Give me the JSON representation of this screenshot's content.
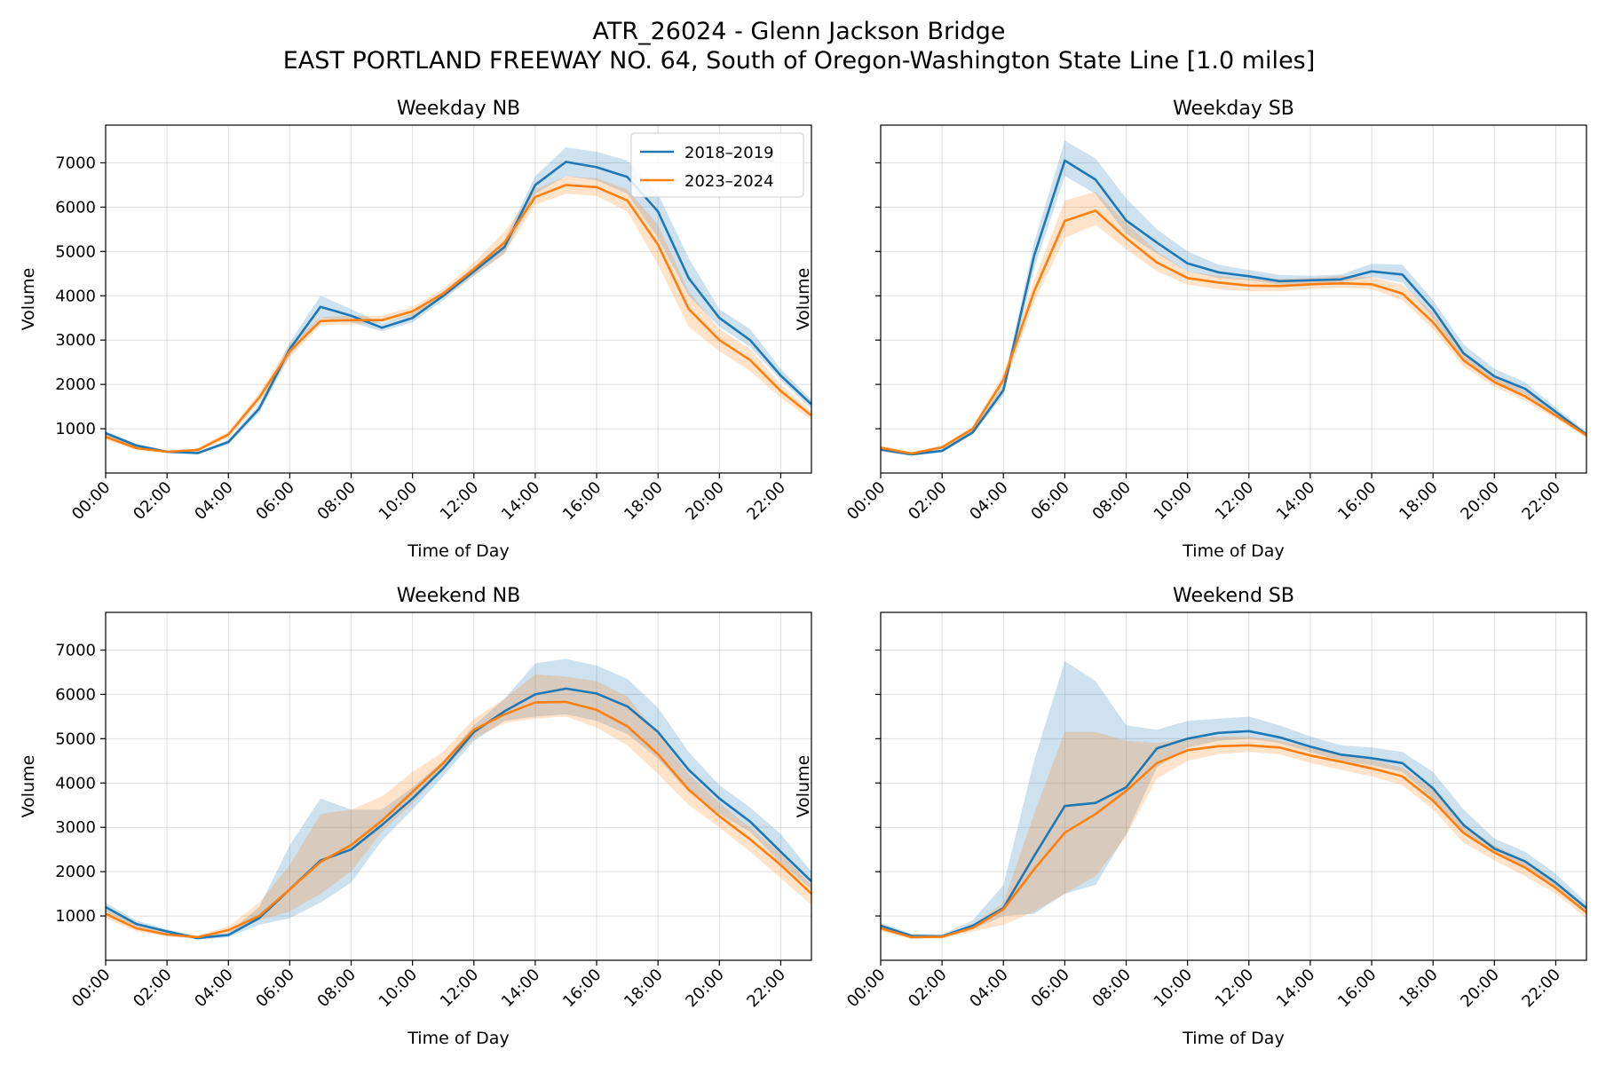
{
  "figure": {
    "title_line1": "ATR_26024 - Glenn Jackson Bridge",
    "title_line2": "EAST PORTLAND FREEWAY NO. 64, South of Oregon-Washington State Line [1.0 miles]"
  },
  "colors": {
    "series_2018_2019": "#1f77b4",
    "series_2023_2024": "#ff7f0e",
    "grid": "#b0b0b0"
  },
  "chart_data": [
    {
      "type": "line",
      "title": "Weekday NB",
      "xlabel": "Time of Day",
      "ylabel": "Volume",
      "xlim": [
        0,
        23
      ],
      "ylim": [
        0,
        7850
      ],
      "xticks": [
        "00:00",
        "02:00",
        "04:00",
        "06:00",
        "08:00",
        "10:00",
        "12:00",
        "14:00",
        "16:00",
        "18:00",
        "20:00",
        "22:00"
      ],
      "yticks": [
        1000,
        2000,
        3000,
        4000,
        5000,
        6000,
        7000
      ],
      "grid": true,
      "legend": "top-right",
      "x": [
        0,
        1,
        2,
        3,
        4,
        5,
        6,
        7,
        8,
        9,
        10,
        11,
        12,
        13,
        14,
        15,
        16,
        17,
        18,
        19,
        20,
        21,
        22,
        23
      ],
      "series": [
        {
          "name": "2018–2019",
          "color": "#1f77b4",
          "values": [
            900,
            620,
            480,
            450,
            700,
            1450,
            2800,
            3750,
            3550,
            3280,
            3500,
            4000,
            4550,
            5100,
            6500,
            7020,
            6900,
            6680,
            5900,
            4400,
            3500,
            3000,
            2200,
            1550
          ],
          "lower": [
            850,
            580,
            450,
            420,
            650,
            1350,
            2650,
            3500,
            3400,
            3200,
            3400,
            3900,
            4450,
            4950,
            6300,
            6700,
            6600,
            6300,
            5300,
            4000,
            3300,
            2850,
            2100,
            1450
          ],
          "upper": [
            950,
            660,
            510,
            480,
            750,
            1550,
            2950,
            4000,
            3700,
            3380,
            3600,
            4100,
            4650,
            5250,
            6700,
            7350,
            7250,
            7050,
            6300,
            4850,
            3700,
            3250,
            2350,
            1650
          ]
        },
        {
          "name": "2023–2024",
          "color": "#ff7f0e",
          "values": [
            820,
            560,
            480,
            520,
            870,
            1700,
            2750,
            3430,
            3450,
            3450,
            3650,
            4050,
            4600,
            5200,
            6230,
            6500,
            6450,
            6150,
            5150,
            3700,
            3000,
            2550,
            1850,
            1300
          ],
          "lower": [
            750,
            520,
            450,
            480,
            800,
            1600,
            2600,
            3350,
            3350,
            3400,
            3550,
            3950,
            4450,
            4950,
            6050,
            6300,
            6250,
            5900,
            4700,
            3300,
            2750,
            2300,
            1700,
            1200
          ],
          "upper": [
            900,
            600,
            510,
            560,
            940,
            1800,
            2900,
            3520,
            3550,
            3550,
            3750,
            4150,
            4750,
            5450,
            6400,
            6700,
            6650,
            6400,
            5600,
            4100,
            3250,
            2800,
            2000,
            1400
          ]
        }
      ]
    },
    {
      "type": "line",
      "title": "Weekday SB",
      "xlabel": "Time of Day",
      "ylabel": "Volume",
      "xlim": [
        0,
        23
      ],
      "ylim": [
        0,
        7850
      ],
      "xticks": [
        "00:00",
        "02:00",
        "04:00",
        "06:00",
        "08:00",
        "10:00",
        "12:00",
        "14:00",
        "16:00",
        "18:00",
        "20:00",
        "22:00"
      ],
      "yticks": [
        1000,
        2000,
        3000,
        4000,
        5000,
        6000,
        7000
      ],
      "grid": true,
      "x": [
        0,
        1,
        2,
        3,
        4,
        5,
        6,
        7,
        8,
        9,
        10,
        11,
        12,
        13,
        14,
        15,
        16,
        17,
        18,
        19,
        20,
        21,
        22,
        23
      ],
      "series": [
        {
          "name": "2018–2019",
          "color": "#1f77b4",
          "values": [
            530,
            420,
            500,
            920,
            1870,
            4900,
            7050,
            6620,
            5700,
            5200,
            4730,
            4530,
            4440,
            4330,
            4350,
            4370,
            4550,
            4480,
            3700,
            2700,
            2180,
            1900,
            1380,
            870
          ],
          "lower": [
            480,
            390,
            460,
            870,
            1750,
            4600,
            6700,
            6300,
            5400,
            4950,
            4550,
            4400,
            4350,
            4250,
            4280,
            4300,
            4420,
            4300,
            3500,
            2550,
            2050,
            1780,
            1300,
            820
          ],
          "upper": [
            580,
            450,
            540,
            980,
            1990,
            5200,
            7500,
            7100,
            6200,
            5500,
            5000,
            4700,
            4580,
            4470,
            4450,
            4480,
            4720,
            4700,
            3900,
            2900,
            2350,
            2050,
            1480,
            930
          ]
        },
        {
          "name": "2023–2024",
          "color": "#ff7f0e",
          "values": [
            570,
            440,
            580,
            1000,
            2100,
            4100,
            5690,
            5920,
            5300,
            4750,
            4400,
            4300,
            4230,
            4220,
            4260,
            4280,
            4260,
            4050,
            3400,
            2540,
            2050,
            1730,
            1300,
            850
          ],
          "lower": [
            520,
            410,
            540,
            950,
            1900,
            3850,
            5300,
            5600,
            5050,
            4550,
            4250,
            4150,
            4100,
            4100,
            4150,
            4180,
            4150,
            3900,
            3250,
            2400,
            1950,
            1630,
            1230,
            800
          ],
          "upper": [
            620,
            470,
            620,
            1050,
            2250,
            4350,
            6150,
            6350,
            5650,
            5000,
            4550,
            4450,
            4380,
            4380,
            4400,
            4450,
            4420,
            4250,
            3600,
            2700,
            2200,
            1850,
            1400,
            900
          ]
        }
      ]
    },
    {
      "type": "line",
      "title": "Weekend NB",
      "xlabel": "Time of Day",
      "ylabel": "Volume",
      "xlim": [
        0,
        23
      ],
      "ylim": [
        0,
        7850
      ],
      "xticks": [
        "00:00",
        "02:00",
        "04:00",
        "06:00",
        "08:00",
        "10:00",
        "12:00",
        "14:00",
        "16:00",
        "18:00",
        "20:00",
        "22:00"
      ],
      "yticks": [
        1000,
        2000,
        3000,
        4000,
        5000,
        6000,
        7000
      ],
      "grid": true,
      "x": [
        0,
        1,
        2,
        3,
        4,
        5,
        6,
        7,
        8,
        9,
        10,
        11,
        12,
        13,
        14,
        15,
        16,
        17,
        18,
        19,
        20,
        21,
        22,
        23
      ],
      "series": [
        {
          "name": "2018–2019",
          "color": "#1f77b4",
          "values": [
            1200,
            820,
            650,
            500,
            570,
            950,
            1600,
            2250,
            2500,
            3050,
            3650,
            4330,
            5150,
            5620,
            6000,
            6130,
            6020,
            5730,
            5150,
            4300,
            3650,
            3130,
            2450,
            1780
          ],
          "lower": [
            1100,
            750,
            600,
            460,
            520,
            800,
            950,
            1300,
            1750,
            2700,
            3400,
            4150,
            4950,
            5400,
            5500,
            5550,
            5400,
            5100,
            4550,
            3800,
            3300,
            2900,
            2200,
            1600
          ],
          "upper": [
            1300,
            900,
            700,
            540,
            620,
            1200,
            2600,
            3650,
            3400,
            3400,
            3900,
            4500,
            5300,
            5900,
            6700,
            6800,
            6650,
            6350,
            5700,
            4700,
            3950,
            3450,
            2850,
            2000
          ]
        },
        {
          "name": "2023–2024",
          "color": "#ff7f0e",
          "values": [
            1050,
            720,
            580,
            520,
            680,
            1000,
            1600,
            2220,
            2600,
            3150,
            3800,
            4450,
            5200,
            5550,
            5820,
            5830,
            5650,
            5280,
            4650,
            3850,
            3250,
            2730,
            2150,
            1500
          ],
          "lower": [
            950,
            650,
            540,
            480,
            620,
            900,
            1100,
            1500,
            2000,
            2900,
            3550,
            4300,
            5000,
            5350,
            5450,
            5500,
            5250,
            4850,
            4200,
            3500,
            3000,
            2450,
            1850,
            1250
          ],
          "upper": [
            1150,
            800,
            620,
            560,
            760,
            1300,
            2150,
            3300,
            3400,
            3700,
            4250,
            4700,
            5450,
            5900,
            6450,
            6400,
            6300,
            5950,
            5100,
            4200,
            3550,
            3000,
            2400,
            1700
          ]
        }
      ]
    },
    {
      "type": "line",
      "title": "Weekend SB",
      "xlabel": "Time of Day",
      "ylabel": "Volume",
      "xlim": [
        0,
        23
      ],
      "ylim": [
        0,
        7850
      ],
      "xticks": [
        "00:00",
        "02:00",
        "04:00",
        "06:00",
        "08:00",
        "10:00",
        "12:00",
        "14:00",
        "16:00",
        "18:00",
        "20:00",
        "22:00"
      ],
      "yticks": [
        1000,
        2000,
        3000,
        4000,
        5000,
        6000,
        7000
      ],
      "grid": true,
      "x": [
        0,
        1,
        2,
        3,
        4,
        5,
        6,
        7,
        8,
        9,
        10,
        11,
        12,
        13,
        14,
        15,
        16,
        17,
        18,
        19,
        20,
        21,
        22,
        23
      ],
      "series": [
        {
          "name": "2018–2019",
          "color": "#1f77b4",
          "values": [
            780,
            550,
            540,
            780,
            1180,
            2350,
            3480,
            3550,
            3900,
            4780,
            5000,
            5130,
            5170,
            5030,
            4820,
            4640,
            4560,
            4450,
            3880,
            3050,
            2520,
            2230,
            1750,
            1180
          ],
          "lower": [
            700,
            500,
            500,
            700,
            1000,
            1050,
            1500,
            1700,
            2850,
            4350,
            4800,
            4950,
            5000,
            4900,
            4700,
            4500,
            4400,
            4250,
            3650,
            2850,
            2400,
            2100,
            1650,
            1050
          ],
          "upper": [
            850,
            600,
            580,
            900,
            1700,
            4500,
            6750,
            6300,
            5300,
            5200,
            5400,
            5450,
            5500,
            5300,
            5050,
            4850,
            4800,
            4700,
            4250,
            3400,
            2750,
            2450,
            1950,
            1300
          ]
        },
        {
          "name": "2023–2024",
          "color": "#ff7f0e",
          "values": [
            720,
            520,
            530,
            730,
            1150,
            2050,
            2880,
            3300,
            3820,
            4450,
            4740,
            4830,
            4850,
            4800,
            4620,
            4480,
            4330,
            4150,
            3600,
            2870,
            2430,
            2090,
            1630,
            1080
          ],
          "lower": [
            650,
            480,
            490,
            650,
            800,
            1100,
            1500,
            1900,
            2800,
            4100,
            4500,
            4650,
            4700,
            4650,
            4450,
            4300,
            4150,
            3950,
            3400,
            2650,
            2250,
            1900,
            1500,
            950
          ],
          "upper": [
            800,
            560,
            570,
            800,
            1300,
            3300,
            5150,
            5150,
            4950,
            4900,
            5000,
            5050,
            5050,
            4950,
            4800,
            4650,
            4520,
            4350,
            3850,
            3050,
            2600,
            2250,
            1780,
            1200
          ]
        }
      ]
    }
  ]
}
